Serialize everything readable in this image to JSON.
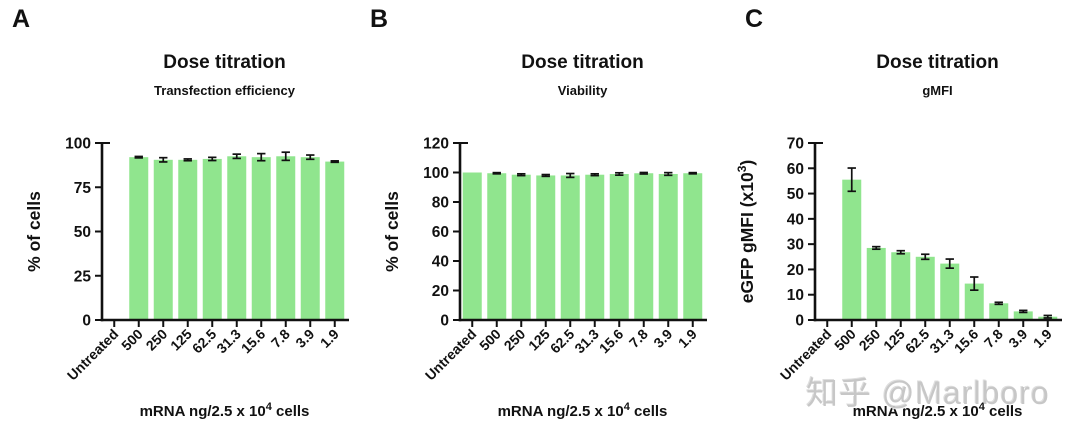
{
  "figure": {
    "background": "#ffffff",
    "axis_color": "#111111",
    "text_color": "#111111"
  },
  "watermark": {
    "text": "知乎 @Marlboro",
    "color": "#c7c7c7"
  },
  "chart_data": [
    {
      "type": "bar",
      "panel_label": "A",
      "title": "Dose titration",
      "subtitle": "Transfection efficiency",
      "categories": [
        "Untreated",
        "500",
        "250",
        "125",
        "62.5",
        "31.3",
        "15.6",
        "7.8",
        "3.9",
        "1.9"
      ],
      "values": [
        0,
        92,
        90.5,
        90.5,
        91,
        92.5,
        92,
        92.5,
        92,
        89.5
      ],
      "errors": [
        0,
        0.4,
        1.2,
        0.5,
        0.9,
        1.2,
        2,
        2.3,
        1.2,
        0.4
      ],
      "ylabel": {
        "pre": "% of cells",
        "sup": "",
        "post": ""
      },
      "xlabel": {
        "pre": "mRNA ng/2.5 x 10",
        "sup": "4",
        "post": " cells"
      },
      "ylim": [
        0,
        100
      ],
      "ytick_step": 25,
      "bar_color": "#90e58e",
      "grid": false,
      "legend": null
    },
    {
      "type": "bar",
      "panel_label": "B",
      "title": "Dose titration",
      "subtitle": "Viability",
      "categories": [
        "Untreated",
        "500",
        "250",
        "125",
        "62.5",
        "31.3",
        "15.6",
        "7.8",
        "3.9",
        "1.9"
      ],
      "values": [
        100,
        99.5,
        98.5,
        98,
        98,
        98.5,
        99,
        99.5,
        99,
        99.5
      ],
      "errors": [
        0,
        0.4,
        0.6,
        0.6,
        1.3,
        0.6,
        0.8,
        0.5,
        0.9,
        0.4
      ],
      "ylabel": {
        "pre": "% of cells",
        "sup": "",
        "post": ""
      },
      "xlabel": {
        "pre": "mRNA ng/2.5 x 10",
        "sup": "4",
        "post": " cells"
      },
      "ylim": [
        0,
        120
      ],
      "ytick_step": 20,
      "bar_color": "#90e58e",
      "grid": false,
      "legend": null
    },
    {
      "type": "bar",
      "panel_label": "C",
      "title": "Dose titration",
      "subtitle": "gMFI",
      "categories": [
        "Untreated",
        "500",
        "250",
        "125",
        "62.5",
        "31.3",
        "15.6",
        "7.8",
        "3.9",
        "1.9"
      ],
      "values": [
        0,
        55.5,
        28.5,
        26.8,
        25,
        22.3,
        14.4,
        6.6,
        3.4,
        1.3
      ],
      "errors": [
        0,
        4.6,
        0.5,
        0.6,
        1,
        1.8,
        2.6,
        0.4,
        0.4,
        0.5
      ],
      "ylabel": {
        "pre": "eGFP gMFI (x10",
        "sup": "3",
        "post": ")"
      },
      "xlabel": {
        "pre": "mRNA ng/2.5 x 10",
        "sup": "4",
        "post": " cells"
      },
      "ylim": [
        0,
        70
      ],
      "ytick_step": 10,
      "bar_color": "#90e58e",
      "grid": false,
      "legend": null
    }
  ]
}
